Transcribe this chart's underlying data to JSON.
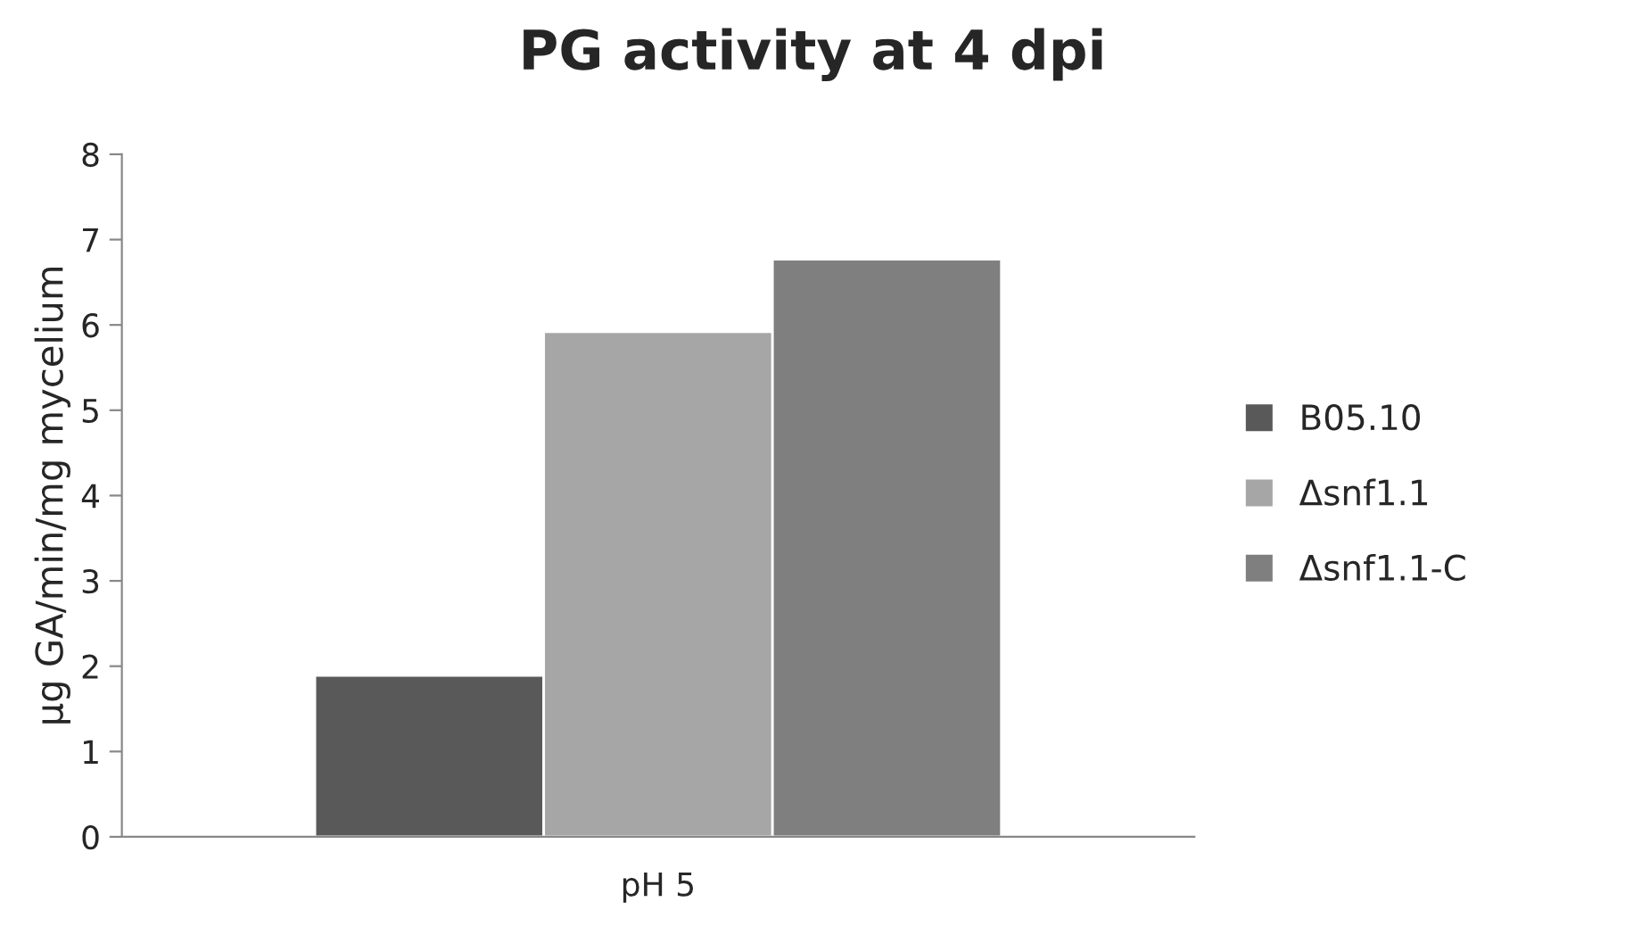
{
  "chart_data": {
    "type": "bar",
    "title": "PG activity at 4 dpi",
    "ylabel": "µg GA/min/mg mycelium",
    "categories": [
      "pH 5"
    ],
    "series": [
      {
        "name": "B05.10",
        "color": "#595959",
        "values": [
          1.89
        ]
      },
      {
        "name": "Δsnf1.1",
        "color": "#a6a6a6",
        "values": [
          5.92
        ]
      },
      {
        "name": "Δsnf1.1-C",
        "color": "#7f7f7f",
        "values": [
          6.77
        ]
      }
    ],
    "ylim": [
      0,
      8
    ],
    "yticks": [
      0,
      1,
      2,
      3,
      4,
      5,
      6,
      7,
      8
    ],
    "grid": false,
    "legend": "right"
  }
}
